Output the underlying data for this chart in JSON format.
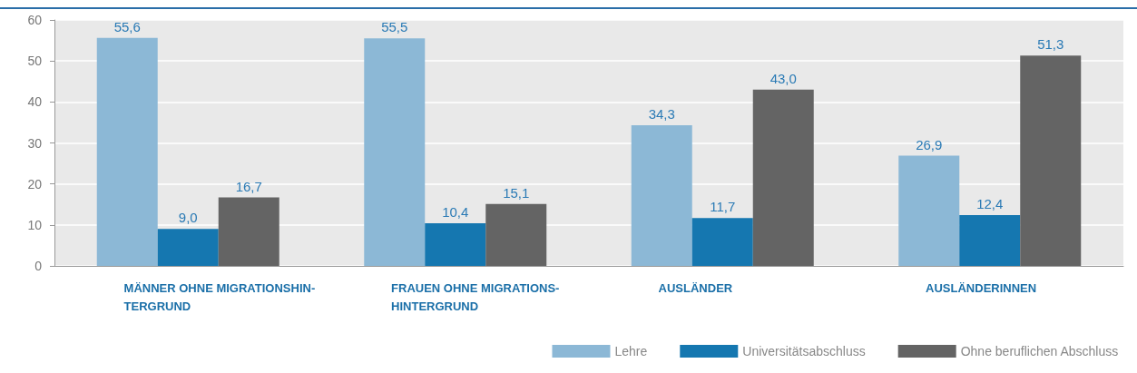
{
  "chart_data": {
    "type": "bar",
    "categories": [
      "MÄNNER OHNE MIGRATIONSHIN-\nTERGRUND",
      "FRAUEN OHNE MIGRATIONS-\nHINTERGRUND",
      "AUSLÄNDER",
      "AUSLÄNDERINNEN"
    ],
    "series": [
      {
        "name": "Lehre",
        "color": "#8cb8d6",
        "values": [
          55.6,
          55.5,
          34.3,
          26.9
        ],
        "value_labels": [
          "55,6",
          "55,5",
          "34,3",
          "26,9"
        ]
      },
      {
        "name": "Universitätsabschluss",
        "color": "#1577b0",
        "values": [
          9.0,
          10.4,
          11.7,
          12.4
        ],
        "value_labels": [
          "9,0",
          "10,4",
          "11,7",
          "12,4"
        ]
      },
      {
        "name": "Ohne beruflichen Abschluss",
        "color": "#646464",
        "values": [
          16.7,
          15.1,
          43.0,
          51.3
        ],
        "value_labels": [
          "16,7",
          "15,1",
          "43,0",
          "51,3"
        ]
      }
    ],
    "ylim": [
      0,
      60
    ],
    "yticks": [
      0,
      10,
      20,
      30,
      40,
      50,
      60
    ],
    "grid": "y",
    "legend": "bottom right"
  }
}
